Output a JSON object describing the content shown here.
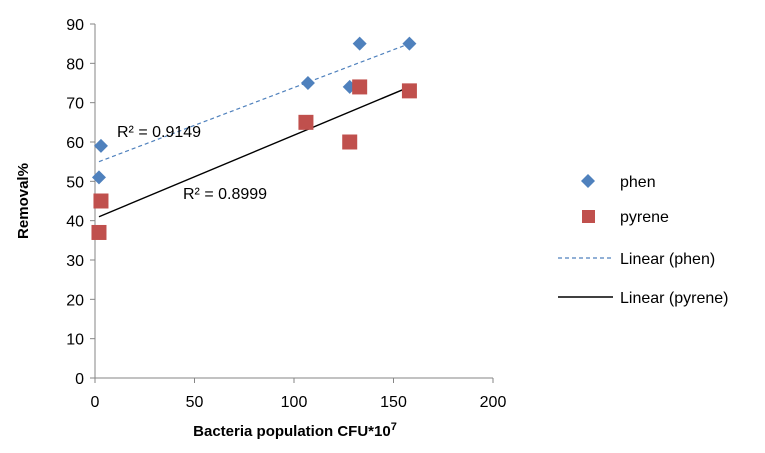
{
  "chart_data": {
    "type": "scatter",
    "xlabel": "Bacteria population CFU*10",
    "xlabel_sup": "7",
    "ylabel": "Removal%",
    "xlim": [
      0,
      200
    ],
    "ylim": [
      0,
      90
    ],
    "x_ticks": [
      "0",
      "50",
      "100",
      "150",
      "200"
    ],
    "y_ticks": [
      "0",
      "10",
      "20",
      "30",
      "40",
      "50",
      "60",
      "70",
      "80",
      "90"
    ],
    "grid": false,
    "legend_position": "right",
    "series": [
      {
        "name": "phen",
        "marker": "diamond",
        "color": "#4F81BD",
        "x": [
          2,
          3,
          107,
          128,
          133,
          158
        ],
        "y": [
          51,
          59,
          75,
          74,
          85,
          85
        ]
      },
      {
        "name": "pyrene",
        "marker": "square",
        "color": "#C0504D",
        "x": [
          2,
          3,
          106,
          128,
          133,
          158
        ],
        "y": [
          37,
          45,
          65,
          60,
          74,
          73
        ]
      }
    ],
    "trendlines": [
      {
        "name": "Linear (phen)",
        "style": "dashed",
        "color": "#4F81BD",
        "x": [
          2,
          158
        ],
        "y": [
          55,
          85
        ],
        "r2_label": "R² = 0.9149"
      },
      {
        "name": "Linear (pyrene)",
        "style": "solid",
        "color": "#000000",
        "x": [
          2,
          158
        ],
        "y": [
          41,
          74
        ],
        "r2_label": "R² = 0.8999"
      }
    ]
  }
}
